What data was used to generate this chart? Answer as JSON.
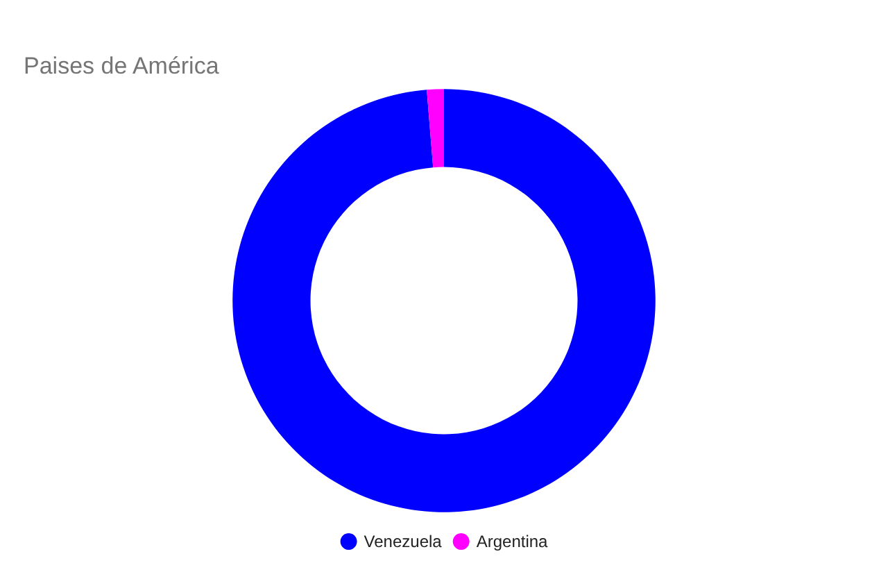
{
  "chart_data": {
    "type": "donut",
    "title": "Paises de América",
    "categories": [
      "Venezuela",
      "Argentina"
    ],
    "values": [
      98.7,
      1.3
    ],
    "colors": [
      "#0000ff",
      "#ff00ff"
    ],
    "legend": "bottom"
  }
}
